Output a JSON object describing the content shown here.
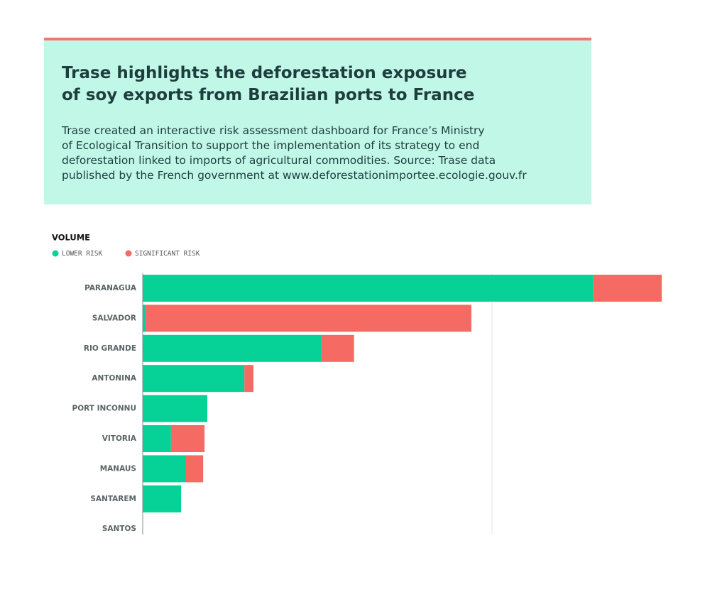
{
  "chart_data": {
    "type": "stacked_barh",
    "title": [
      "Trase highlights the deforestation exposure",
      "of soy exports from Brazilian ports to France"
    ],
    "subtitle": [
      "Trase created an interactive risk assessment dashboard for France’s Ministry",
      "of Ecological Transition to support the implementation of its strategy to end",
      "deforestation linked to imports of agricultural commodities. Source: Trase data",
      "published by the French government at www.deforestationimportee.ecologie.gouv.fr"
    ],
    "axis_title": "VOLUME",
    "categories": [
      "PARANAGUA",
      "SALVADOR",
      "RIO GRANDE",
      "ANTONINA",
      "PORT INCONNU",
      "VITORIA",
      "MANAUS",
      "SANTAREM",
      "SANTOS"
    ],
    "series": [
      {
        "name": "LOWER RISK",
        "color": "#06d196",
        "values": [
          128.9,
          0.8,
          51.2,
          29.1,
          18.5,
          8.1,
          12.4,
          11.0,
          0
        ]
      },
      {
        "name": "SIGNIFICANT RISK",
        "color": "#f56a63",
        "values": [
          19.7,
          93.3,
          9.3,
          2.6,
          0,
          9.6,
          4.9,
          0,
          0
        ]
      }
    ],
    "xlim": [
      0,
      150
    ],
    "legend": "top-left"
  }
}
